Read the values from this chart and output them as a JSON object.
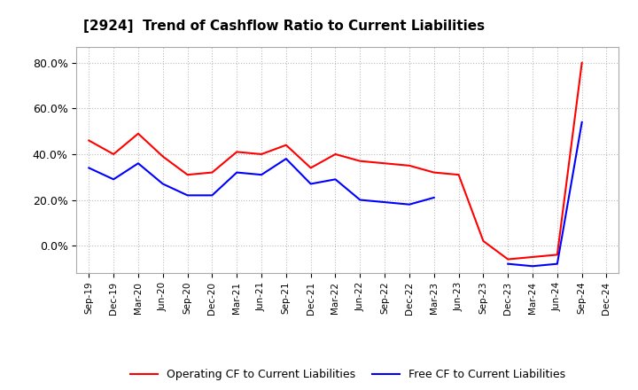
{
  "title": "[2924]  Trend of Cashflow Ratio to Current Liabilities",
  "x_labels": [
    "Sep-19",
    "Dec-19",
    "Mar-20",
    "Jun-20",
    "Sep-20",
    "Dec-20",
    "Mar-21",
    "Jun-21",
    "Sep-21",
    "Dec-21",
    "Mar-22",
    "Jun-22",
    "Sep-22",
    "Dec-22",
    "Mar-23",
    "Jun-23",
    "Sep-23",
    "Dec-23",
    "Mar-24",
    "Jun-24",
    "Sep-24",
    "Dec-24"
  ],
  "operating_cf": [
    0.46,
    0.4,
    0.49,
    0.39,
    0.31,
    0.32,
    0.41,
    0.4,
    0.44,
    0.34,
    0.4,
    0.37,
    0.36,
    0.35,
    0.32,
    0.31,
    0.02,
    -0.06,
    -0.05,
    -0.04,
    0.8,
    null
  ],
  "free_cf": [
    0.34,
    0.29,
    0.36,
    0.27,
    0.22,
    0.22,
    0.32,
    0.31,
    0.38,
    0.27,
    0.29,
    0.2,
    0.19,
    0.18,
    0.21,
    null,
    null,
    -0.08,
    -0.09,
    -0.08,
    0.54,
    null
  ],
  "operating_color": "#FF0000",
  "free_color": "#0000FF",
  "ylim": [
    -0.12,
    0.87
  ],
  "yticks": [
    0.0,
    0.2,
    0.4,
    0.6,
    0.8
  ],
  "ytick_labels": [
    "0.0%",
    "20.0%",
    "40.0%",
    "60.0%",
    "80.0%"
  ],
  "legend_labels": [
    "Operating CF to Current Liabilities",
    "Free CF to Current Liabilities"
  ],
  "background_color": "#FFFFFF",
  "plot_bg_color": "#FFFFFF",
  "grid_color": "#BBBBBB"
}
